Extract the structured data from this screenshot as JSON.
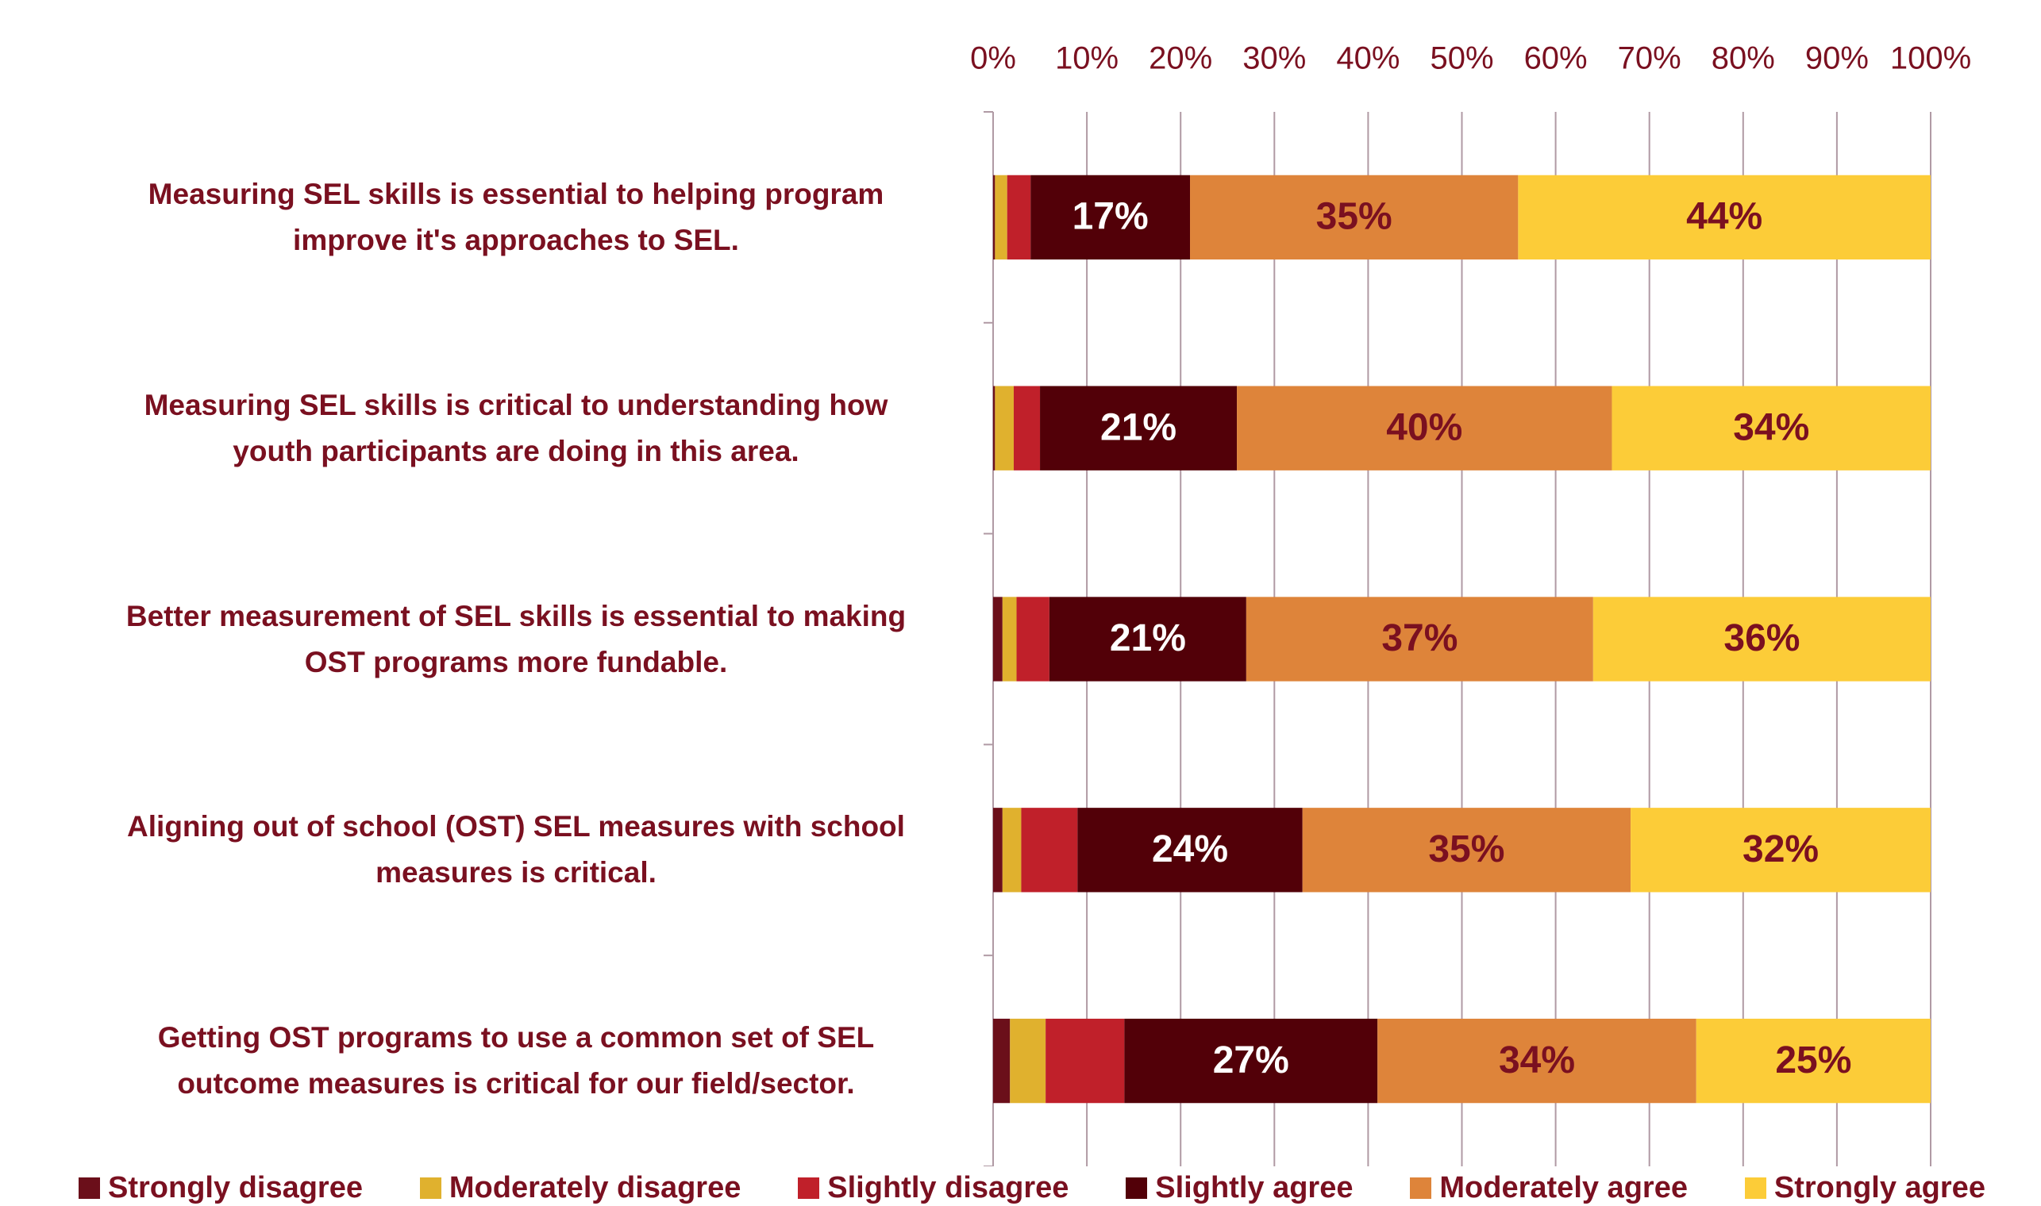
{
  "chart_data": {
    "type": "stacked_barh",
    "categories": [
      "Measuring SEL skills is essential to helping program\nimprove it's approaches to SEL.",
      "Measuring SEL skills is critical to understanding how\nyouth participants are doing in this area.",
      "Better measurement of SEL skills is essential to making\nOST programs more fundable.",
      "Aligning out of school (OST) SEL measures with school\nmeasures is critical.",
      "Getting OST programs to use a common set of SEL\noutcome measures is critical for our field/sector."
    ],
    "series": [
      {
        "name": "Strongly disagree",
        "color": "#6b0f1a",
        "values": [
          0.2,
          0.2,
          1,
          1,
          1.8
        ]
      },
      {
        "name": "Moderately disagree",
        "color": "#e0b12e",
        "values": [
          1.3,
          2,
          1.5,
          2,
          3.8
        ]
      },
      {
        "name": "Slightly disagree",
        "color": "#c0202a",
        "values": [
          2.5,
          2.8,
          3.5,
          6,
          8.4
        ]
      },
      {
        "name": "Slightly agree",
        "color": "#520008",
        "label_color": "#ffffff",
        "values": [
          17,
          21,
          21,
          24,
          27
        ],
        "value_labels": [
          "17%",
          "21%",
          "21%",
          "24%",
          "27%"
        ]
      },
      {
        "name": "Moderately agree",
        "color": "#de843a",
        "label_color": "#7a1020",
        "values": [
          35,
          40,
          37,
          35,
          34
        ],
        "value_labels": [
          "35%",
          "40%",
          "37%",
          "35%",
          "34%"
        ]
      },
      {
        "name": "Strongly agree",
        "color": "#fccc38",
        "label_color": "#7a1020",
        "values": [
          44,
          34,
          36,
          32,
          25
        ],
        "value_labels": [
          "44%",
          "34%",
          "36%",
          "32%",
          "25%"
        ]
      }
    ],
    "xlim": [
      0,
      100
    ],
    "xticks": [
      {
        "value": 0,
        "label": "0%"
      },
      {
        "value": 10,
        "label": "10%"
      },
      {
        "value": 20,
        "label": "20%"
      },
      {
        "value": 30,
        "label": "30%"
      },
      {
        "value": 40,
        "label": "40%"
      },
      {
        "value": 50,
        "label": "50%"
      },
      {
        "value": 60,
        "label": "60%"
      },
      {
        "value": 70,
        "label": "70%"
      },
      {
        "value": 80,
        "label": "80%"
      },
      {
        "value": 90,
        "label": "90%"
      },
      {
        "value": 100,
        "label": "100%"
      }
    ],
    "grid": true,
    "legend": "bottom"
  }
}
